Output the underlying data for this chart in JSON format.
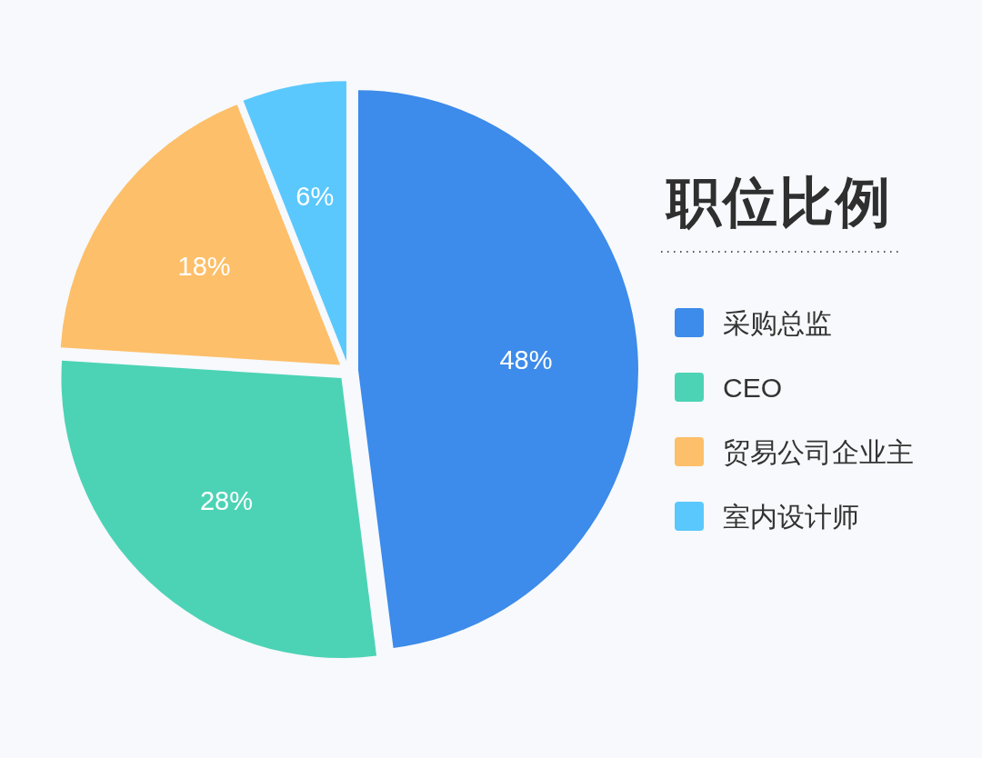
{
  "chart_data": {
    "type": "pie",
    "title": "职位比例",
    "categories": [
      "采购总监",
      "CEO",
      "贸易公司企业主",
      "室内设计师"
    ],
    "values": [
      48,
      28,
      18,
      6
    ],
    "colors": [
      "#3d8bea",
      "#4cd3b5",
      "#fdbf69",
      "#5ac8fd"
    ],
    "value_labels": [
      "48%",
      "28%",
      "18%",
      "6%"
    ],
    "legend": "right"
  }
}
